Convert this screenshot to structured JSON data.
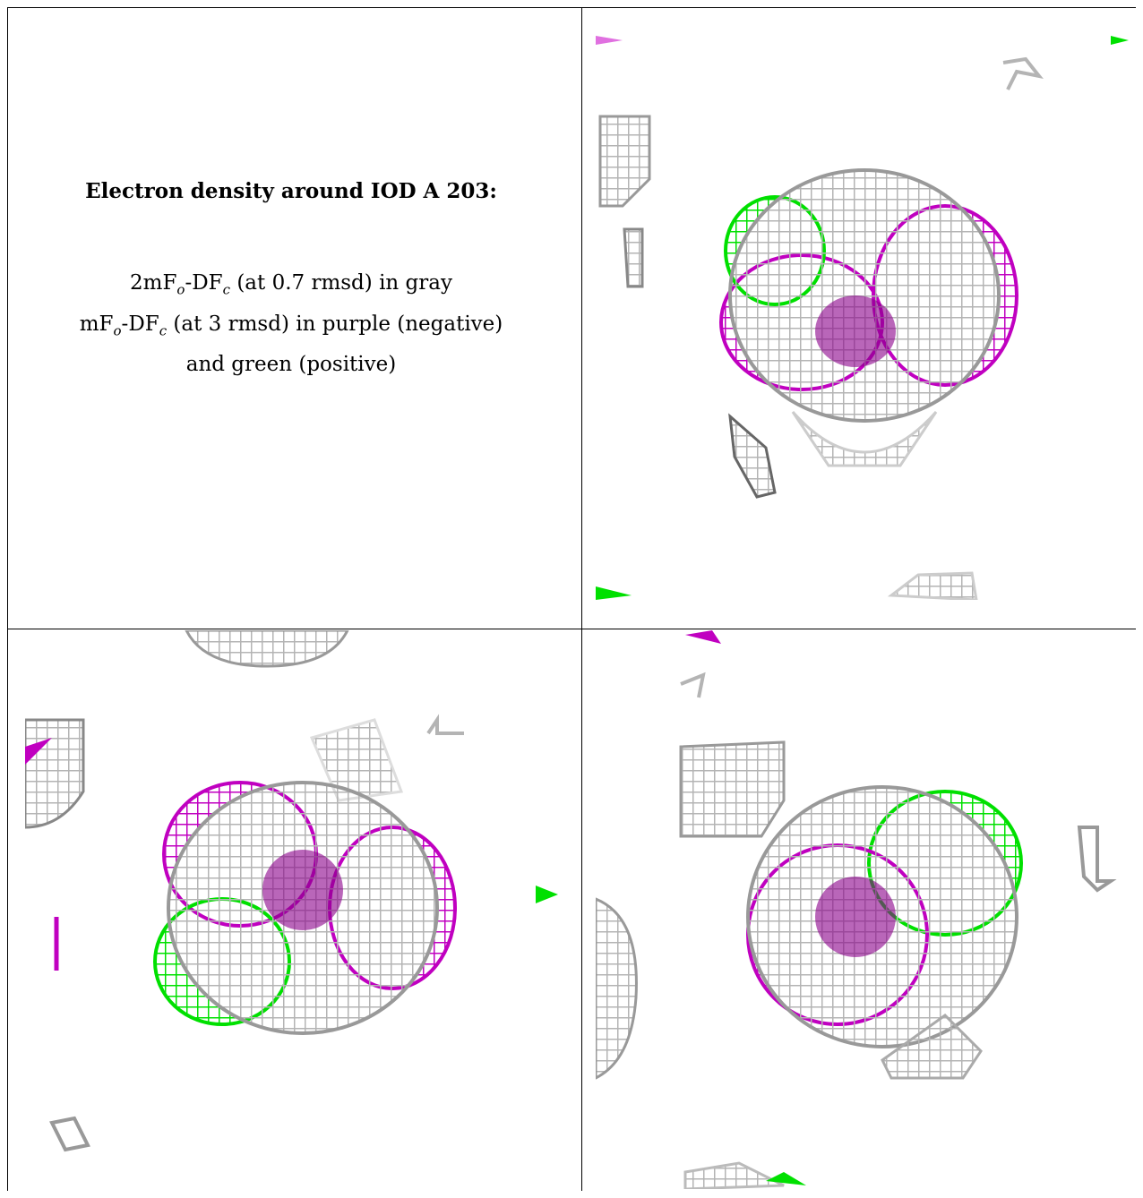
{
  "caption": {
    "title": "Electron density around IOD A 203:",
    "line1_a": "2mF",
    "line1_sub_o": "o",
    "line1_b": "-DF",
    "line1_sub_c": "c",
    "line1_c": " (at 0.7 rmsd) in gray",
    "line2_a": "mF",
    "line2_sub_o": "o",
    "line2_b": "-DF",
    "line2_sub_c": "c",
    "line2_c": " (at 3 rmsd) in purple (negative)",
    "line3": "and green (positive)"
  },
  "colors": {
    "gray_map": "#b4b4b4",
    "negative_map": "#c000c0",
    "positive_map": "#00e000",
    "border": "#000000"
  },
  "panels": [
    {
      "id": "top-right",
      "view": "density-view-1"
    },
    {
      "id": "bottom-left",
      "view": "density-view-2"
    },
    {
      "id": "bottom-right",
      "view": "density-view-3"
    }
  ]
}
